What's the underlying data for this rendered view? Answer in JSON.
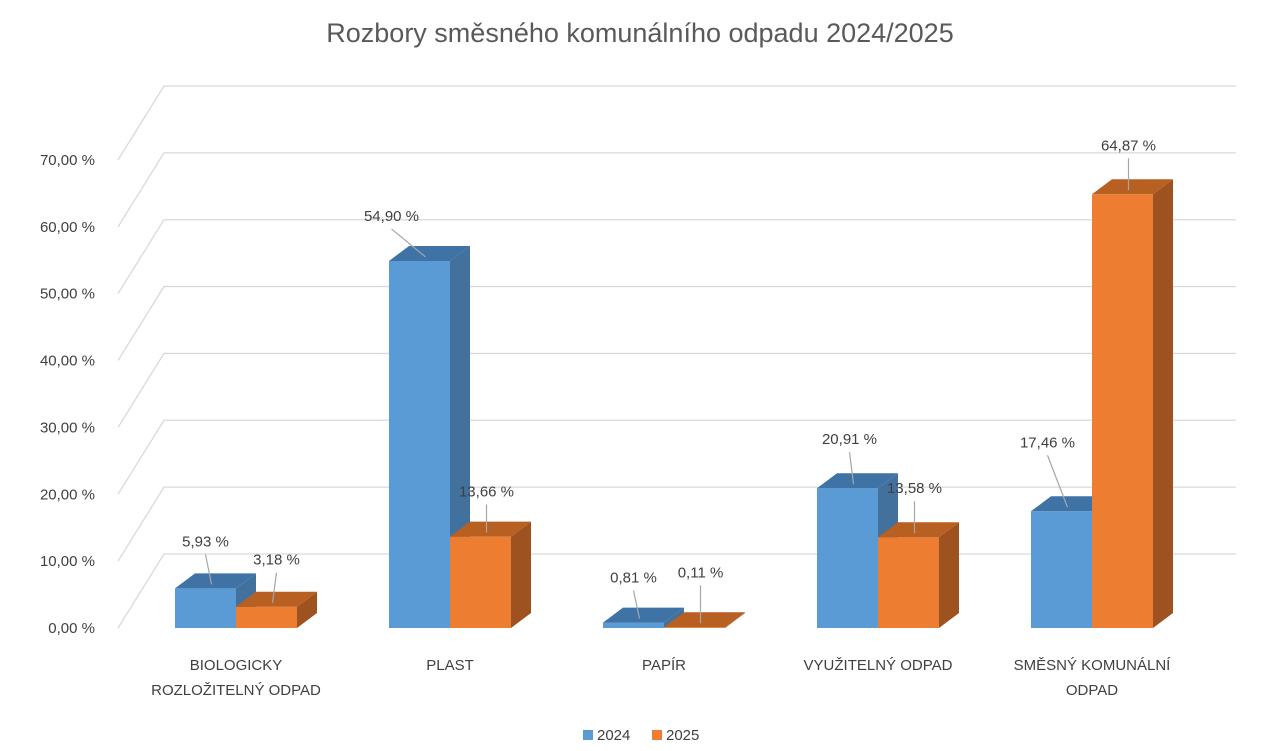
{
  "chart_data": {
    "type": "bar",
    "title": "Rozbory směsného komunálního odpadu 2024/2025",
    "categories": [
      [
        "BIOLOGICKY",
        "ROZLOŽITELNÝ ODPAD"
      ],
      [
        "PLAST"
      ],
      [
        "PAPÍR"
      ],
      [
        "VYUŽITELNÝ ODPAD"
      ],
      [
        "SMĚSNÝ KOMUNÁLNÍ",
        "ODPAD"
      ]
    ],
    "series": [
      {
        "name": "2024",
        "color": "#5B9BD5",
        "side_color": "#41719C",
        "top_color": "#3F73A6",
        "values": [
          5.93,
          54.9,
          0.81,
          20.91,
          17.46
        ],
        "labels": [
          "5,93 %",
          "54,90 %",
          "0,81 %",
          "20,91 %",
          "17,46 %"
        ]
      },
      {
        "name": "2025",
        "color": "#ED7D31",
        "side_color": "#9E521F",
        "top_color": "#B85F22",
        "values": [
          3.18,
          13.66,
          0.11,
          13.58,
          64.87
        ],
        "labels": [
          "3,18 %",
          "13,66 %",
          "0,11 %",
          "13,58 %",
          "64,87 %"
        ]
      }
    ],
    "yticks": [
      "0,00 %",
      "10,00 %",
      "20,00 %",
      "30,00 %",
      "40,00 %",
      "50,00 %",
      "60,00 %",
      "70,00 %"
    ],
    "ylim": [
      0,
      70
    ],
    "grid": true,
    "legend": "bottom-center",
    "view": "3d-column"
  }
}
